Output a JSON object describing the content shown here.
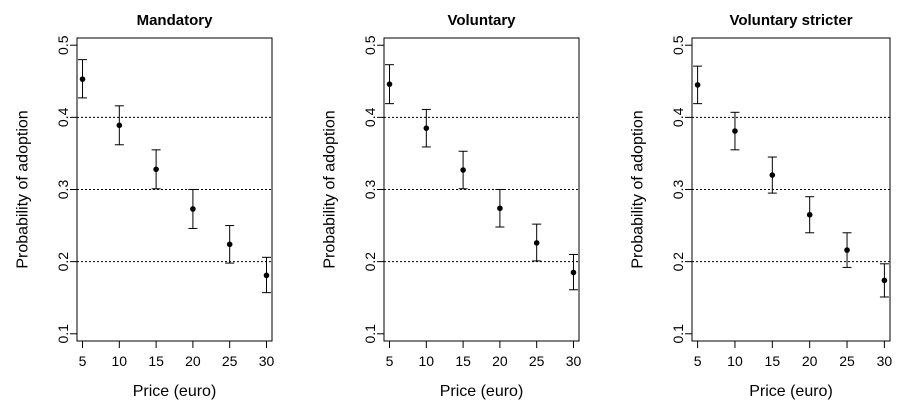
{
  "chart_data": [
    {
      "type": "scatter",
      "title": "Mandatory",
      "xlabel": "Price (euro)",
      "ylabel": "Probability of adoption",
      "x": [
        5,
        10,
        15,
        20,
        25,
        30
      ],
      "y": [
        0.453,
        0.389,
        0.328,
        0.273,
        0.224,
        0.181
      ],
      "y_lower": [
        0.427,
        0.362,
        0.301,
        0.246,
        0.198,
        0.157
      ],
      "y_upper": [
        0.48,
        0.416,
        0.355,
        0.3,
        0.25,
        0.206
      ],
      "xticks": [
        5,
        10,
        15,
        20,
        25,
        30
      ],
      "yticks": [
        0.1,
        0.2,
        0.3,
        0.4,
        0.5
      ],
      "hlines": [
        0.2,
        0.3,
        0.4
      ],
      "xlim": [
        4.25,
        30.75
      ],
      "ylim": [
        0.09,
        0.51
      ]
    },
    {
      "type": "scatter",
      "title": "Voluntary",
      "xlabel": "Price (euro)",
      "ylabel": "Probability of adoption",
      "x": [
        5,
        10,
        15,
        20,
        25,
        30
      ],
      "y": [
        0.446,
        0.385,
        0.327,
        0.274,
        0.226,
        0.185
      ],
      "y_lower": [
        0.419,
        0.359,
        0.301,
        0.248,
        0.201,
        0.161
      ],
      "y_upper": [
        0.473,
        0.411,
        0.353,
        0.3,
        0.252,
        0.21
      ],
      "xticks": [
        5,
        10,
        15,
        20,
        25,
        30
      ],
      "yticks": [
        0.1,
        0.2,
        0.3,
        0.4,
        0.5
      ],
      "hlines": [
        0.2,
        0.3,
        0.4
      ],
      "xlim": [
        4.25,
        30.75
      ],
      "ylim": [
        0.09,
        0.51
      ]
    },
    {
      "type": "scatter",
      "title": "Voluntary stricter",
      "xlabel": "Price (euro)",
      "ylabel": "Probability of adoption",
      "x": [
        5,
        10,
        15,
        20,
        25,
        30
      ],
      "y": [
        0.445,
        0.381,
        0.32,
        0.265,
        0.216,
        0.174
      ],
      "y_lower": [
        0.419,
        0.355,
        0.295,
        0.24,
        0.192,
        0.151
      ],
      "y_upper": [
        0.471,
        0.407,
        0.345,
        0.29,
        0.24,
        0.197
      ],
      "xticks": [
        5,
        10,
        15,
        20,
        25,
        30
      ],
      "yticks": [
        0.1,
        0.2,
        0.3,
        0.4,
        0.5
      ],
      "hlines": [
        0.2,
        0.3,
        0.4
      ],
      "xlim": [
        4.25,
        30.75
      ],
      "ylim": [
        0.09,
        0.51
      ]
    }
  ]
}
